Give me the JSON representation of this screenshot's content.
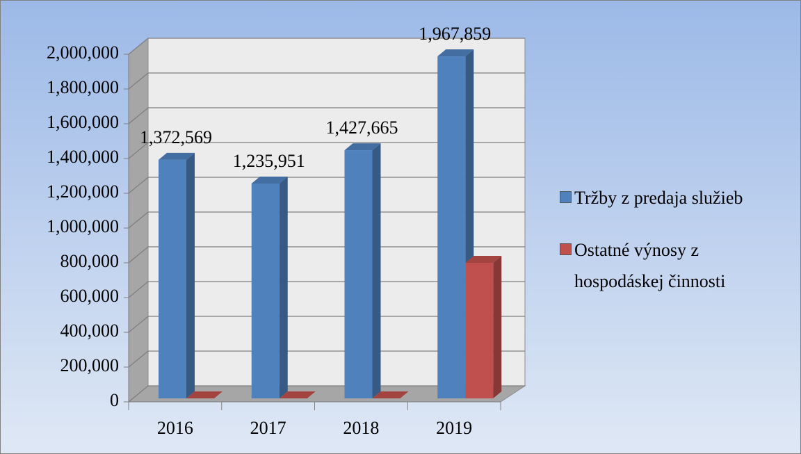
{
  "chart_data": {
    "type": "bar3d",
    "categories": [
      "2016",
      "2017",
      "2018",
      "2019"
    ],
    "series": [
      {
        "name": "Tržby z predaja služieb",
        "color": "#4f81bd",
        "values": [
          1372569,
          1235951,
          1427665,
          1967859
        ],
        "value_labels": [
          "1,372,569",
          "1,235,951",
          "1,427,665",
          "1,967,859"
        ]
      },
      {
        "name": "Ostatné výnosy z hospodáskej činnosti",
        "color": "#c0504d",
        "values": [
          0,
          0,
          0,
          780000
        ]
      }
    ],
    "ylim": [
      0,
      2000000
    ],
    "yticks": [
      0,
      {
        "value": 200000,
        "label": "200,000"
      },
      {
        "value": 400000,
        "label": "400,000"
      },
      {
        "value": 600000,
        "label": "600,000"
      },
      {
        "value": 800000,
        "label": "800,000"
      },
      {
        "value": 1000000,
        "label": "1,000,000"
      },
      {
        "value": 1200000,
        "label": "1,200,000"
      },
      {
        "value": 1400000,
        "label": "1,400,000"
      },
      {
        "value": 1600000,
        "label": "1,600,000"
      },
      {
        "value": 1800000,
        "label": "1,800,000"
      },
      {
        "value": 2000000,
        "label": "2,000,000"
      }
    ],
    "grid": true,
    "legend": "right"
  }
}
